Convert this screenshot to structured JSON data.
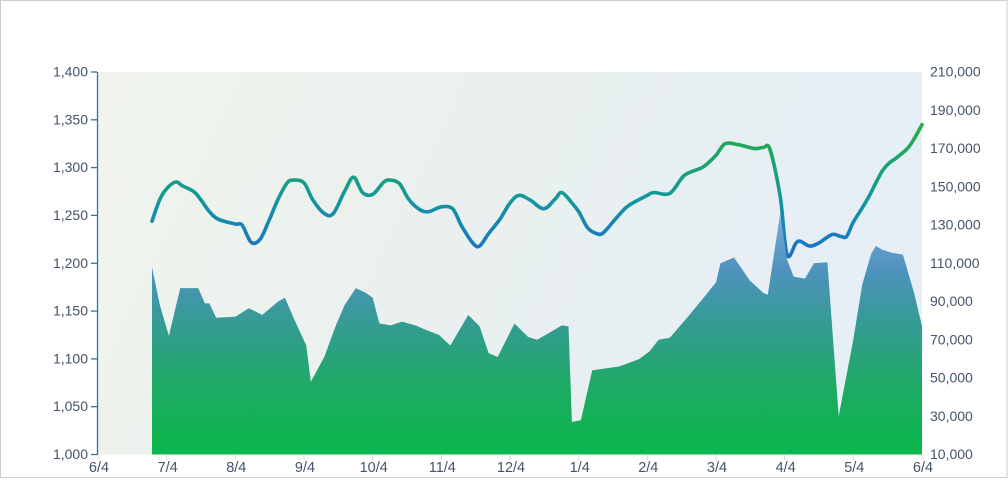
{
  "chart_data": {
    "type": "area+line",
    "title": "",
    "subtitle": "",
    "legend": [],
    "grid": "off",
    "x_axis": {
      "tick_labels": [
        "6/4",
        "7/4",
        "8/4",
        "9/4",
        "10/4",
        "11/4",
        "12/4",
        "1/4",
        "2/4",
        "3/4",
        "4/4",
        "5/4",
        "6/4"
      ]
    },
    "left_y_axis": {
      "min": 1000,
      "max": 1400,
      "tick_step": 50,
      "tick_labels": [
        "1,000",
        "1,050",
        "1,100",
        "1,150",
        "1,200",
        "1,250",
        "1,300",
        "1,350",
        "1,400"
      ]
    },
    "right_y_axis": {
      "min": 10000,
      "max": 210000,
      "tick_step": 20000,
      "tick_labels": [
        "10,000",
        "30,000",
        "50,000",
        "70,000",
        "90,000",
        "110,000",
        "130,000",
        "150,000",
        "170,000",
        "190,000",
        "210,000"
      ]
    },
    "points_format": "[date(M/D), value]",
    "series": [
      {
        "name": "price-line",
        "type": "line",
        "axis": "left",
        "points": [
          [
            "6/28",
            1244
          ],
          [
            "7/1",
            1267
          ],
          [
            "7/4",
            1278
          ],
          [
            "7/8",
            1285
          ],
          [
            "7/11",
            1281
          ],
          [
            "7/16",
            1275
          ],
          [
            "7/19",
            1267
          ],
          [
            "7/23",
            1254
          ],
          [
            "7/27",
            1246
          ],
          [
            "8/4",
            1241
          ],
          [
            "8/7",
            1240
          ],
          [
            "8/11",
            1222
          ],
          [
            "8/15",
            1225
          ],
          [
            "8/19",
            1245
          ],
          [
            "8/23",
            1267
          ],
          [
            "8/27",
            1284
          ],
          [
            "8/30",
            1287
          ],
          [
            "9/4",
            1284
          ],
          [
            "9/8",
            1266
          ],
          [
            "9/13",
            1252
          ],
          [
            "9/17",
            1252
          ],
          [
            "9/22",
            1275
          ],
          [
            "9/26",
            1290
          ],
          [
            "9/30",
            1274
          ],
          [
            "10/4",
            1272
          ],
          [
            "10/9",
            1285
          ],
          [
            "10/12",
            1287
          ],
          [
            "10/16",
            1283
          ],
          [
            "10/20",
            1267
          ],
          [
            "10/25",
            1256
          ],
          [
            "10/29",
            1254
          ],
          [
            "11/4",
            1259
          ],
          [
            "11/9",
            1257
          ],
          [
            "11/13",
            1239
          ],
          [
            "11/18",
            1221
          ],
          [
            "11/21",
            1218
          ],
          [
            "11/25",
            1231
          ],
          [
            "11/30",
            1246
          ],
          [
            "12/4",
            1263
          ],
          [
            "12/8",
            1271
          ],
          [
            "12/13",
            1266
          ],
          [
            "12/19",
            1257
          ],
          [
            "12/24",
            1267
          ],
          [
            "12/27",
            1274
          ],
          [
            "1/1",
            1263
          ],
          [
            "1/4",
            1254
          ],
          [
            "1/8",
            1237
          ],
          [
            "1/12",
            1231
          ],
          [
            "1/15",
            1232
          ],
          [
            "1/21",
            1248
          ],
          [
            "1/26",
            1260
          ],
          [
            "2/4",
            1271
          ],
          [
            "2/7",
            1274
          ],
          [
            "2/14",
            1273
          ],
          [
            "2/20",
            1291
          ],
          [
            "2/25",
            1297
          ],
          [
            "2/29",
            1301
          ],
          [
            "3/4",
            1313
          ],
          [
            "3/8",
            1325
          ],
          [
            "3/14",
            1324
          ],
          [
            "3/21",
            1320
          ],
          [
            "3/25",
            1321
          ],
          [
            "3/28",
            1319
          ],
          [
            "4/2",
            1270
          ],
          [
            "4/5",
            1209
          ],
          [
            "4/9",
            1221
          ],
          [
            "4/11",
            1223
          ],
          [
            "4/15",
            1218
          ],
          [
            "4/19",
            1221
          ],
          [
            "4/25",
            1230
          ],
          [
            "4/29",
            1228
          ],
          [
            "5/1",
            1228
          ],
          [
            "5/4",
            1243
          ],
          [
            "5/8",
            1258
          ],
          [
            "5/11",
            1270
          ],
          [
            "5/14",
            1284
          ],
          [
            "5/17",
            1297
          ],
          [
            "5/20",
            1305
          ],
          [
            "5/23",
            1310
          ],
          [
            "5/28",
            1320
          ],
          [
            "5/31",
            1330
          ],
          [
            "6/4",
            1345
          ]
        ]
      },
      {
        "name": "volume-area",
        "type": "area",
        "axis": "right",
        "points": [
          [
            "6/28",
            108000
          ],
          [
            "7/1",
            88000
          ],
          [
            "7/5",
            72000
          ],
          [
            "7/10",
            97000
          ],
          [
            "7/18",
            97000
          ],
          [
            "7/21",
            89000
          ],
          [
            "7/23",
            89000
          ],
          [
            "7/26",
            81500
          ],
          [
            "8/4",
            82000
          ],
          [
            "8/10",
            86500
          ],
          [
            "8/16",
            83000
          ],
          [
            "8/23",
            90000
          ],
          [
            "8/26",
            92000
          ],
          [
            "8/31",
            78500
          ],
          [
            "9/5",
            67000
          ],
          [
            "9/7",
            48000
          ],
          [
            "9/13",
            61000
          ],
          [
            "9/18",
            77000
          ],
          [
            "9/22",
            88000
          ],
          [
            "9/27",
            97000
          ],
          [
            "10/1",
            94500
          ],
          [
            "10/4",
            92000
          ],
          [
            "10/7",
            78500
          ],
          [
            "10/12",
            77500
          ],
          [
            "10/17",
            79500
          ],
          [
            "10/23",
            77500
          ],
          [
            "10/28",
            75000
          ],
          [
            "11/3",
            72500
          ],
          [
            "11/8",
            67000
          ],
          [
            "11/16",
            83000
          ],
          [
            "11/21",
            77000
          ],
          [
            "11/25",
            63000
          ],
          [
            "11/29",
            61000
          ],
          [
            "12/6",
            78500
          ],
          [
            "12/12",
            71500
          ],
          [
            "12/16",
            70000
          ],
          [
            "12/22",
            74000
          ],
          [
            "12/27",
            77500
          ],
          [
            "12/30",
            77000
          ],
          [
            "1/1",
            27000
          ],
          [
            "1/5",
            28000
          ],
          [
            "1/10",
            54000
          ],
          [
            "1/16",
            55000
          ],
          [
            "1/22",
            56000
          ],
          [
            "1/31",
            60000
          ],
          [
            "2/5",
            64000
          ],
          [
            "2/9",
            70000
          ],
          [
            "2/14",
            71000
          ],
          [
            "2/22",
            82000
          ],
          [
            "2/29",
            92000
          ],
          [
            "3/4",
            100000
          ],
          [
            "3/6",
            110000
          ],
          [
            "3/12",
            113000
          ],
          [
            "3/19",
            101000
          ],
          [
            "3/25",
            94500
          ],
          [
            "3/27",
            93500
          ],
          [
            "4/2",
            136000
          ],
          [
            "4/5",
            112000
          ],
          [
            "4/8",
            103000
          ],
          [
            "4/13",
            102000
          ],
          [
            "4/17",
            110000
          ],
          [
            "4/23",
            110500
          ],
          [
            "4/28",
            30000
          ],
          [
            "5/4",
            70000
          ],
          [
            "5/8",
            99000
          ],
          [
            "5/12",
            115000
          ],
          [
            "5/14",
            119000
          ],
          [
            "5/17",
            117000
          ],
          [
            "5/21",
            115500
          ],
          [
            "5/26",
            114500
          ],
          [
            "5/31",
            94500
          ],
          [
            "6/4",
            77000
          ]
        ]
      }
    ],
    "colors": {
      "axis_line": "#2e74b5",
      "axis_label": "#44546a",
      "x_minor_tick": "#d6dbe0",
      "frame_border": "#c9cdd2",
      "plot_bg_gradient": [
        "#f0f4ec",
        "#eaf0ef",
        "#e6eef6"
      ],
      "line_gradient": [
        "#2bad43",
        "#1aa56b",
        "#13989a",
        "#1682b8",
        "#1e6cc8"
      ],
      "area_gradient": [
        "#85b2dc",
        "#74a8d6",
        "#4e92bd",
        "#339c90",
        "#1fa966",
        "#0db54e"
      ]
    }
  }
}
